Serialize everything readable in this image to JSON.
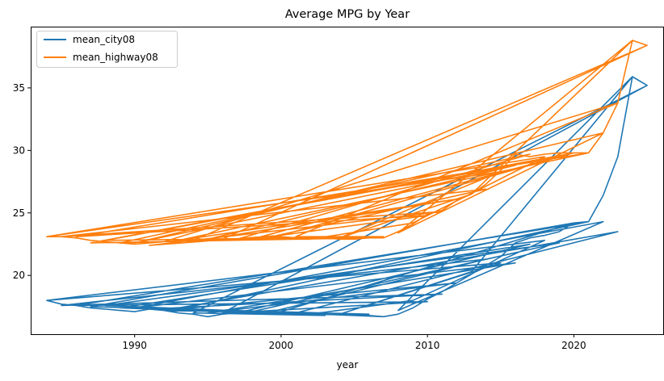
{
  "chart_data": {
    "type": "line",
    "title": "Average MPG by Year",
    "xlabel": "year",
    "ylabel": "",
    "xlim": [
      1982.9,
      2026.1
    ],
    "ylim": [
      15.3,
      39.9
    ],
    "x_ticks": [
      1990,
      2000,
      2010,
      2020
    ],
    "y_ticks": [
      20,
      25,
      30,
      35
    ],
    "legend_position": "top-left",
    "grid": false,
    "x": [
      1984,
      1985,
      1986,
      1987,
      1988,
      1989,
      1990,
      1991,
      1992,
      1993,
      1994,
      1995,
      1996,
      1997,
      1998,
      1999,
      2000,
      2001,
      2002,
      2003,
      2004,
      2005,
      2006,
      2007,
      2008,
      2009,
      2010,
      2011,
      2012,
      2013,
      2014,
      2015,
      2016,
      2017,
      2018,
      2019,
      2020,
      2021,
      2022,
      2023,
      2024,
      2025,
      2024,
      2008,
      2022,
      1990,
      2016,
      1995,
      2012,
      1993,
      2021,
      1986,
      2010,
      1998,
      2019,
      1988,
      2007,
      2001,
      2023,
      1992,
      2005,
      1999,
      2014,
      1985,
      2011,
      1991,
      2000,
      2020,
      1987,
      2006,
      1996,
      2025,
      1994,
      2003,
      1989,
      2017,
      1997,
      2002,
      2009,
      2018,
      1984,
      2015,
      2004,
      2013,
      2024
    ],
    "series": [
      {
        "name": "mean_city08",
        "color": "#1f77b4",
        "values": [
          18.0,
          17.7,
          17.6,
          17.4,
          17.3,
          17.2,
          17.1,
          17.3,
          17.2,
          17.0,
          16.9,
          16.7,
          16.9,
          17.0,
          17.0,
          17.0,
          17.1,
          17.0,
          16.9,
          16.9,
          16.9,
          16.9,
          16.8,
          16.7,
          16.9,
          17.4,
          18.1,
          18.7,
          19.4,
          20.1,
          20.8,
          21.5,
          22.6,
          23.0,
          23.2,
          23.5,
          24.2,
          24.3,
          26.4,
          29.5,
          35.9,
          35.2,
          35.9,
          17.2,
          24.3,
          17.4,
          21.0,
          17.0,
          19.4,
          17.3,
          24.3,
          17.6,
          17.9,
          17.1,
          22.6,
          17.6,
          16.7,
          17.0,
          23.5,
          17.2,
          16.9,
          17.0,
          21.3,
          17.6,
          18.5,
          17.3,
          17.1,
          24.2,
          17.5,
          16.9,
          17.0,
          35.2,
          17.0,
          16.8,
          17.4,
          22.5,
          17.0,
          16.9,
          18.0,
          22.8,
          18.0,
          21.0,
          16.9,
          20.3,
          35.9
        ]
      },
      {
        "name": "mean_highway08",
        "color": "#ff7f0e",
        "values": [
          23.1,
          23.1,
          23.0,
          22.8,
          22.7,
          22.6,
          22.5,
          22.6,
          22.7,
          22.8,
          22.8,
          22.8,
          22.9,
          22.9,
          22.9,
          23.0,
          23.1,
          23.0,
          23.0,
          23.0,
          22.9,
          22.9,
          23.0,
          23.0,
          23.5,
          24.1,
          24.9,
          25.2,
          26.0,
          26.5,
          27.3,
          28.4,
          29.7,
          29.5,
          29.7,
          29.8,
          29.8,
          29.8,
          31.4,
          33.8,
          38.8,
          38.4,
          38.8,
          23.4,
          31.4,
          22.6,
          28.8,
          22.9,
          26.1,
          22.8,
          29.8,
          23.1,
          24.8,
          22.9,
          29.5,
          22.8,
          23.1,
          23.1,
          33.8,
          22.7,
          23.0,
          23.0,
          26.9,
          23.1,
          25.1,
          22.4,
          23.2,
          29.8,
          22.6,
          23.0,
          22.9,
          38.4,
          22.8,
          23.1,
          22.6,
          29.7,
          22.9,
          22.9,
          24.2,
          29.5,
          23.1,
          28.3,
          23.0,
          26.5,
          38.8
        ]
      }
    ]
  }
}
